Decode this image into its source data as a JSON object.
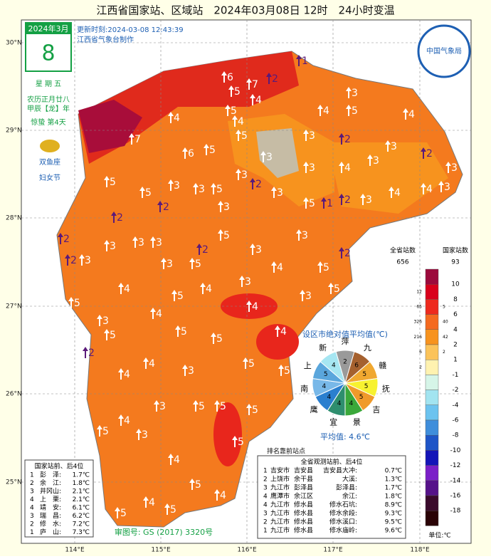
{
  "title": "江西省国家站、区域站　2024年03月08日 12时　24小时变温",
  "calendar": {
    "month": "2024年3月",
    "day": "8",
    "weekday": "星 期 五",
    "lunar": "农历正月廿八",
    "ganzhi": "甲辰【龙】年",
    "solar_term": "惊蛰 第4天",
    "zodiac": "双鱼座",
    "festival": "妇女节"
  },
  "update": "更新时刻:2024-03-08 12:43:39",
  "producer": "江西省气象台制作",
  "logo": "中国气象局",
  "lat_labels": [
    "30°N",
    "29°N",
    "28°N",
    "27°N",
    "26°N",
    "25°N"
  ],
  "lon_labels": [
    "114°E",
    "115°E",
    "116°E",
    "117°E",
    "118°E"
  ],
  "legend": {
    "all_header": "全省站数",
    "all_total": "656",
    "national_header": "国家站数",
    "national_total": "93",
    "levels": [
      "10",
      "8",
      "6",
      "4",
      "2",
      "1",
      "-1",
      "-2",
      "-4",
      "-6",
      "-8",
      "-10",
      "-12",
      "-14",
      "-16",
      "-18"
    ],
    "colors": [
      "#9c0a3c",
      "#d9001b",
      "#ee2a1d",
      "#f46a1f",
      "#f7931e",
      "#fbc35a",
      "#fff2b0",
      "#d6f5e8",
      "#a2e4f0",
      "#6cc3ef",
      "#3f8edb",
      "#1e55c7",
      "#1414b8",
      "#7b1fc8",
      "#56128a",
      "#3a0a2c",
      "#2a0306"
    ],
    "all_counts": [
      "12",
      "65",
      "326",
      "216",
      "6",
      "2"
    ],
    "national_counts": [
      "5",
      "40",
      "42",
      "2"
    ],
    "unit": "单位:℃"
  },
  "pie": {
    "title": "设区市绝对值平均值(℃)",
    "labels": [
      "萍",
      "九",
      "赣",
      "抚",
      "吉",
      "景",
      "宜",
      "鹰",
      "南",
      "上",
      "新"
    ],
    "values": [
      2,
      6,
      5,
      5,
      5,
      4,
      4,
      4,
      4,
      5,
      4
    ],
    "colors": [
      "#9a9a9a",
      "#a5612f",
      "#f0a830",
      "#f7f230",
      "#f09a2a",
      "#3aa83a",
      "#2e8e6e",
      "#2a7fcf",
      "#78b8e8",
      "#5aa6dc",
      "#a6e6f2"
    ],
    "average": "平均值: 4.6℃"
  },
  "ranking_note": "排名靠前站点",
  "national_table": {
    "title": "国家站前、后4位",
    "rows": [
      [
        "1",
        "彭　泽:",
        "1.7℃"
      ],
      [
        "2",
        "余　江:",
        "1.8℃"
      ],
      [
        "3",
        "井冈山:",
        "2.1℃"
      ],
      [
        "4",
        "上　栗:",
        "2.1℃"
      ],
      [
        "4",
        "靖　安:",
        "6.1℃"
      ],
      [
        "3",
        "瑞　昌:",
        "6.2℃"
      ],
      [
        "2",
        "修　水:",
        "7.2℃"
      ],
      [
        "1",
        "庐　山:",
        "7.3℃"
      ]
    ]
  },
  "all_table": {
    "title": "全省观测站前、后4位",
    "rows": [
      [
        "1",
        "吉安市",
        "吉安县",
        "吉安县大冲:",
        "0.7℃"
      ],
      [
        "2",
        "上饶市",
        "余干县",
        "大溪:",
        "1.3℃"
      ],
      [
        "3",
        "九江市",
        "彭泽县",
        "彭泽县:",
        "1.7℃"
      ],
      [
        "4",
        "鹰潭市",
        "余江区",
        "余江:",
        "1.8℃"
      ],
      [
        "4",
        "九江市",
        "修水县",
        "修水石坑:",
        "8.9℃"
      ],
      [
        "3",
        "九江市",
        "修水县",
        "修水余段:",
        "9.3℃"
      ],
      [
        "2",
        "九江市",
        "修水县",
        "修水溪口:",
        "9.5℃"
      ],
      [
        "1",
        "九江市",
        "修水县",
        "修水庙岭:",
        "9.6℃"
      ]
    ]
  },
  "approval": "审图号: GS (2017) 3320号",
  "stations": [
    1,
    2,
    6,
    7,
    5,
    4,
    3,
    4,
    5,
    4,
    4,
    5,
    4,
    5,
    3,
    2,
    3,
    2,
    7,
    6,
    5,
    3,
    3,
    4,
    3,
    3,
    5,
    5,
    3,
    3,
    5,
    3,
    2,
    3,
    5,
    1,
    2,
    3,
    4,
    4,
    3,
    2,
    2,
    3,
    2,
    2,
    3,
    3,
    3,
    3,
    2,
    5,
    3,
    3,
    2,
    3,
    5,
    4,
    5,
    4,
    5,
    4,
    3,
    3,
    5,
    5,
    3,
    4,
    5,
    4,
    5,
    4,
    5,
    2,
    4,
    4,
    3,
    5,
    5,
    4,
    3,
    4,
    5,
    3,
    5,
    5,
    5,
    4,
    5,
    5,
    4,
    5,
    4,
    5
  ]
}
